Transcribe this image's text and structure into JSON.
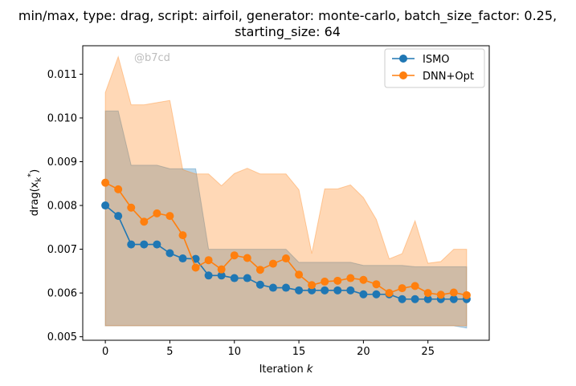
{
  "chart_data": {
    "type": "line",
    "title_line1": "min/max, type: drag, script: airfoil, generator: monte-carlo, batch_size_factor: 0.25,",
    "title_line2": "starting_size: 64",
    "xlabel_text": "Iteration ",
    "xlabel_var": "k",
    "ylabel": "drag(x",
    "ylabel_sub": "k",
    "ylabel_sup": "*",
    "ylabel_end": ")",
    "watermark": "@b7cd",
    "xlim": [
      -1.75,
      29.75
    ],
    "ylim": [
      0.00492,
      0.01165
    ],
    "xticks": [
      0,
      5,
      10,
      15,
      20,
      25
    ],
    "yticks": [
      0.005,
      0.006,
      0.007,
      0.008,
      0.009,
      0.01,
      0.011
    ],
    "ytick_labels": [
      "0.005",
      "0.006",
      "0.007",
      "0.008",
      "0.009",
      "0.010",
      "0.011"
    ],
    "legend_position": "top-right",
    "series": [
      {
        "name": "ISMO",
        "color": "#1f77b4",
        "x": [
          0,
          1,
          2,
          3,
          4,
          5,
          6,
          7,
          8,
          9,
          10,
          11,
          12,
          13,
          14,
          15,
          16,
          17,
          18,
          19,
          20,
          21,
          22,
          23,
          24,
          25,
          26,
          27,
          28
        ],
        "values": [
          0.008,
          0.00776,
          0.00711,
          0.00711,
          0.00711,
          0.00691,
          0.00679,
          0.00678,
          0.0064,
          0.0064,
          0.00634,
          0.00634,
          0.00619,
          0.00612,
          0.00612,
          0.00606,
          0.00606,
          0.00606,
          0.00606,
          0.00606,
          0.00597,
          0.00597,
          0.00597,
          0.00586,
          0.00586,
          0.00586,
          0.00586,
          0.00586,
          0.00586
        ],
        "band_min": [
          0.00525,
          0.00525,
          0.00525,
          0.00525,
          0.00525,
          0.00525,
          0.00525,
          0.00525,
          0.00525,
          0.00525,
          0.00525,
          0.00525,
          0.00525,
          0.00525,
          0.00525,
          0.00525,
          0.00525,
          0.00525,
          0.00525,
          0.00525,
          0.00525,
          0.00525,
          0.00525,
          0.00525,
          0.00525,
          0.00525,
          0.00525,
          0.00525,
          0.0052
        ],
        "band_max": [
          0.01016,
          0.01016,
          0.00892,
          0.00892,
          0.00892,
          0.00884,
          0.00884,
          0.00884,
          0.007,
          0.007,
          0.007,
          0.007,
          0.007,
          0.007,
          0.007,
          0.0067,
          0.0067,
          0.0067,
          0.0067,
          0.0067,
          0.00663,
          0.00663,
          0.00663,
          0.00663,
          0.0066,
          0.0066,
          0.0066,
          0.0066,
          0.0066
        ]
      },
      {
        "name": "DNN+Opt",
        "color": "#ff7f0e",
        "x": [
          0,
          1,
          2,
          3,
          4,
          5,
          6,
          7,
          8,
          9,
          10,
          11,
          12,
          13,
          14,
          15,
          16,
          17,
          18,
          19,
          20,
          21,
          22,
          23,
          24,
          25,
          26,
          27,
          28
        ],
        "values": [
          0.00852,
          0.00837,
          0.00795,
          0.00763,
          0.00782,
          0.00776,
          0.00732,
          0.00658,
          0.00675,
          0.00654,
          0.00686,
          0.0068,
          0.00653,
          0.00667,
          0.00679,
          0.00642,
          0.00618,
          0.00626,
          0.00628,
          0.00634,
          0.0063,
          0.0062,
          0.006,
          0.00611,
          0.00616,
          0.006,
          0.00596,
          0.00601,
          0.00595
        ],
        "band_min": [
          0.00525,
          0.00525,
          0.00525,
          0.00525,
          0.00525,
          0.00525,
          0.00525,
          0.00525,
          0.00525,
          0.00525,
          0.00525,
          0.00525,
          0.00525,
          0.00525,
          0.00525,
          0.00525,
          0.00525,
          0.00525,
          0.00525,
          0.00525,
          0.00525,
          0.00525,
          0.00525,
          0.00525,
          0.00525,
          0.00525,
          0.00525,
          0.00525,
          0.00525
        ],
        "band_max": [
          0.01058,
          0.0114,
          0.0103,
          0.0103,
          0.01035,
          0.0104,
          0.00882,
          0.00872,
          0.00872,
          0.00845,
          0.00873,
          0.00885,
          0.00872,
          0.00872,
          0.00872,
          0.00836,
          0.0069,
          0.00838,
          0.00838,
          0.00847,
          0.00818,
          0.00768,
          0.00678,
          0.0069,
          0.00765,
          0.00668,
          0.00672,
          0.007,
          0.007
        ]
      }
    ]
  }
}
